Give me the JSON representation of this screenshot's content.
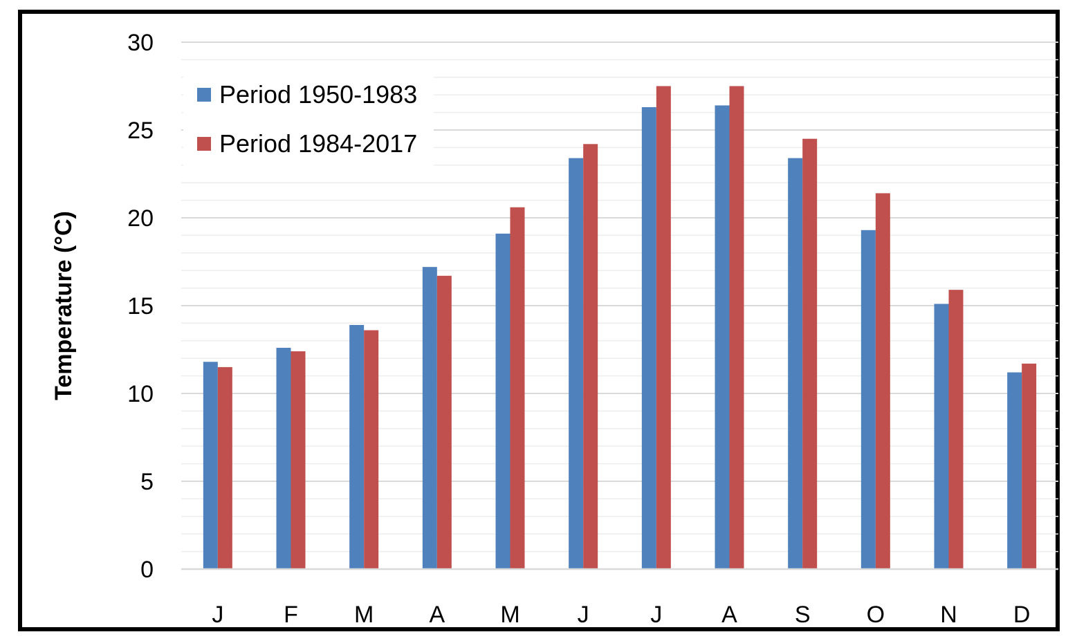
{
  "chart_data": {
    "type": "bar",
    "title": "",
    "xlabel": "",
    "ylabel": "Temperature (°C)",
    "categories": [
      "J",
      "F",
      "M",
      "A",
      "M",
      "J",
      "J",
      "A",
      "S",
      "O",
      "N",
      "D"
    ],
    "series": [
      {
        "name": "Period 1950-1983",
        "color": "#4F81BD",
        "values": [
          11.8,
          12.6,
          13.9,
          17.2,
          19.1,
          23.4,
          26.3,
          26.4,
          23.4,
          19.3,
          15.1,
          11.2
        ]
      },
      {
        "name": "Period 1984-2017",
        "color": "#C0504D",
        "values": [
          11.5,
          12.4,
          13.6,
          16.7,
          20.6,
          24.2,
          27.5,
          27.5,
          24.5,
          21.4,
          15.9,
          11.7
        ]
      }
    ],
    "ylim": [
      0,
      30
    ],
    "yticks": [
      0,
      5,
      10,
      15,
      20,
      25,
      30
    ],
    "grid": true,
    "legend_position": "top-left"
  }
}
